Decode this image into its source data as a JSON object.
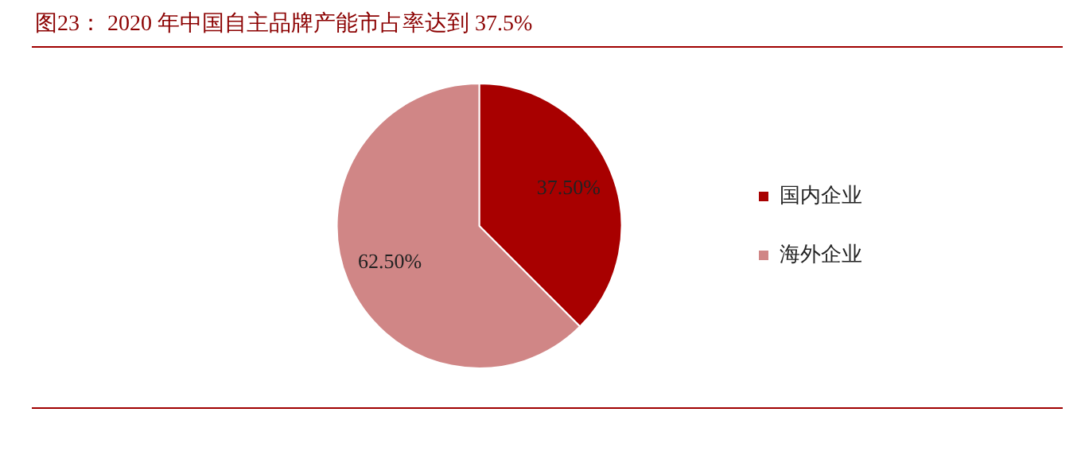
{
  "chart_data": {
    "type": "pie",
    "title": "图23：  2020 年中国自主品牌产能市占率达到 37.5%",
    "categories": [
      "国内企业",
      "海外企业"
    ],
    "values": [
      37.5,
      62.5
    ],
    "colors": [
      "#a80000",
      "#d08686"
    ],
    "value_labels": [
      "37.50%",
      "62.50%"
    ],
    "legend": "right"
  }
}
